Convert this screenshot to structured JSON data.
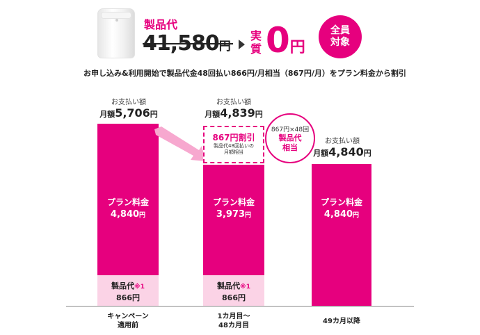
{
  "header": {
    "price_label": "製品代",
    "old_price": "41,580",
    "old_yen": "円",
    "arrow_label": "実質",
    "new_price": "0",
    "new_yen": "円",
    "badge_line1": "全員",
    "badge_line2": "対象"
  },
  "subline": "お申し込み&利用開始で製品代金48回払い866円/月相当（867円/月）をプラン料金から割引",
  "columns": [
    {
      "pay_sub": "お支払い額",
      "pay_prefix": "月額",
      "pay_value": "5,706",
      "pay_yen": "円",
      "plan_label": "プラン料金",
      "plan_value": "4,840",
      "plan_yen": "円",
      "product_label": "製品代",
      "product_note": "※1",
      "product_value": "866円",
      "axis_line1": "キャンペーン",
      "axis_line2": "適用前"
    },
    {
      "pay_sub": "お支払い額",
      "pay_prefix": "月額",
      "pay_value": "4,839",
      "pay_yen": "円",
      "plan_label": "プラン料金",
      "plan_value": "3,973",
      "plan_yen": "円",
      "product_label": "製品代",
      "product_note": "※1",
      "product_value": "866円",
      "axis_line1": "1カ月目～",
      "axis_line2": "48カ月目"
    },
    {
      "pay_sub": "お支払い額",
      "pay_prefix": "月額",
      "pay_value": "4,840",
      "pay_yen": "円",
      "plan_label": "プラン料金",
      "plan_value": "4,840",
      "plan_yen": "円",
      "axis_line1": "49カ月以降",
      "axis_line2": ""
    }
  ],
  "discount_box": {
    "main": "867円割引",
    "sub1": "製品代48回払いの",
    "sub2": "月額相当"
  },
  "discount_circle": {
    "line1": "867円×48回",
    "line2": "製品代",
    "line3": "相当"
  },
  "colors": {
    "accent": "#e6007e",
    "product_bg": "#fbd3e6",
    "arrow": "#f7a8cf"
  }
}
